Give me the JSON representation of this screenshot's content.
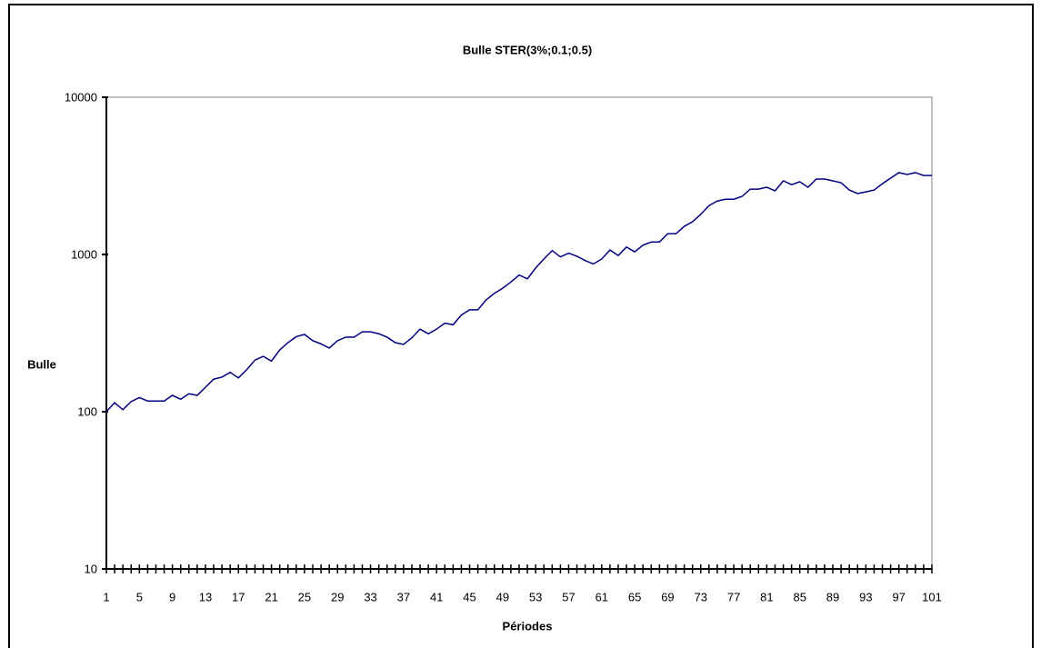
{
  "chart_data": {
    "type": "line",
    "title": "Bulle STER(3%;0.1;0.5)",
    "x_label": "Périodes",
    "y_label": "Bulle",
    "log_y": true,
    "ylim": [
      10,
      10000
    ],
    "yticks": [
      10,
      100,
      1000,
      10000
    ],
    "color": "#000080",
    "categories": [
      1,
      null,
      null,
      null,
      5,
      null,
      null,
      null,
      9,
      null,
      null,
      null,
      13,
      null,
      null,
      null,
      17,
      null,
      null,
      null,
      21,
      null,
      null,
      null,
      25,
      null,
      null,
      null,
      29,
      null,
      null,
      null,
      33,
      null,
      null,
      null,
      37,
      null,
      null,
      null,
      41,
      null,
      null,
      null,
      45,
      null,
      null,
      null,
      49,
      null,
      null,
      null,
      53,
      null,
      null,
      null,
      57,
      null,
      null,
      null,
      61,
      null,
      null,
      null,
      65,
      null,
      null,
      null,
      69,
      null,
      null,
      null,
      73,
      null,
      null,
      null,
      77,
      null,
      null,
      null,
      81,
      null,
      null,
      null,
      85,
      null,
      null,
      null,
      89,
      null,
      null,
      null,
      93,
      null,
      null,
      null,
      97,
      null,
      null,
      null,
      101
    ],
    "values": [
      100,
      114,
      103,
      116,
      123,
      117,
      117,
      117,
      127,
      120,
      130,
      127,
      143,
      161,
      166,
      178,
      164,
      185,
      213,
      225,
      210,
      247,
      275,
      300,
      310,
      283,
      270,
      254,
      283,
      298,
      298,
      322,
      322,
      313,
      298,
      275,
      268,
      295,
      335,
      313,
      335,
      366,
      357,
      412,
      445,
      445,
      514,
      566,
      609,
      668,
      740,
      700,
      820,
      936,
      1059,
      965,
      1020,
      975,
      915,
      870,
      936,
      1067,
      985,
      1115,
      1040,
      1145,
      1200,
      1200,
      1355,
      1355,
      1510,
      1615,
      1800,
      2045,
      2185,
      2245,
      2245,
      2340,
      2605,
      2605,
      2675,
      2540,
      2940,
      2780,
      2900,
      2675,
      3020,
      3020,
      2940,
      2860,
      2570,
      2440,
      2500,
      2570,
      2820,
      3060,
      3315,
      3225,
      3315,
      3180,
      3180
    ]
  }
}
